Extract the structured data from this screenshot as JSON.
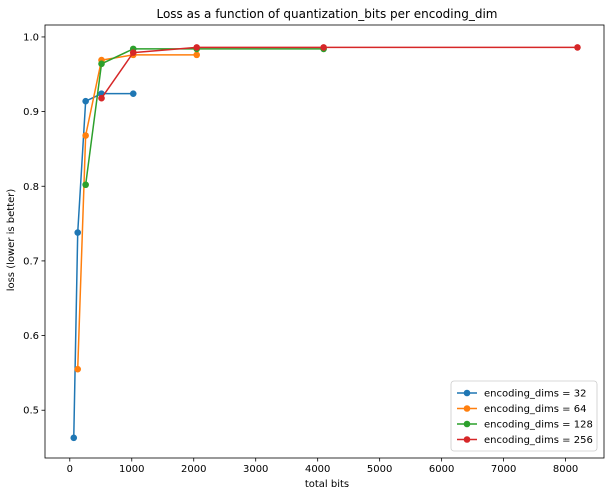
{
  "chart_data": {
    "type": "line",
    "title": "Loss as a function of quantization_bits per encoding_dim",
    "xlabel": "total bits",
    "ylabel": "loss (lower is better)",
    "xlim": [
      -400,
      8620
    ],
    "ylim": [
      0.436,
      1.016
    ],
    "xticks": [
      0,
      1000,
      2000,
      3000,
      4000,
      5000,
      6000,
      7000,
      8000
    ],
    "yticks": [
      0.5,
      0.6,
      0.7,
      0.8,
      0.9,
      1.0
    ],
    "ytick_labels": [
      "0.5",
      "0.6",
      "0.7",
      "0.8",
      "0.9",
      "1.0"
    ],
    "grid": false,
    "legend_position": "lower right",
    "series": [
      {
        "name": "encoding_dims = 32",
        "color": "#1f77b4",
        "x": [
          64,
          128,
          256,
          512,
          1024
        ],
        "y": [
          0.463,
          0.738,
          0.914,
          0.924,
          0.924
        ]
      },
      {
        "name": "encoding_dims = 64",
        "color": "#ff7f0e",
        "x": [
          128,
          256,
          512,
          1024,
          2048
        ],
        "y": [
          0.555,
          0.868,
          0.969,
          0.976,
          0.976
        ]
      },
      {
        "name": "encoding_dims = 128",
        "color": "#2ca02c",
        "x": [
          256,
          512,
          1024,
          2048,
          4096
        ],
        "y": [
          0.802,
          0.964,
          0.984,
          0.984,
          0.984
        ]
      },
      {
        "name": "encoding_dims = 256",
        "color": "#d62728",
        "x": [
          512,
          1024,
          2048,
          4096,
          8192
        ],
        "y": [
          0.918,
          0.979,
          0.986,
          0.986,
          0.986
        ]
      }
    ]
  }
}
